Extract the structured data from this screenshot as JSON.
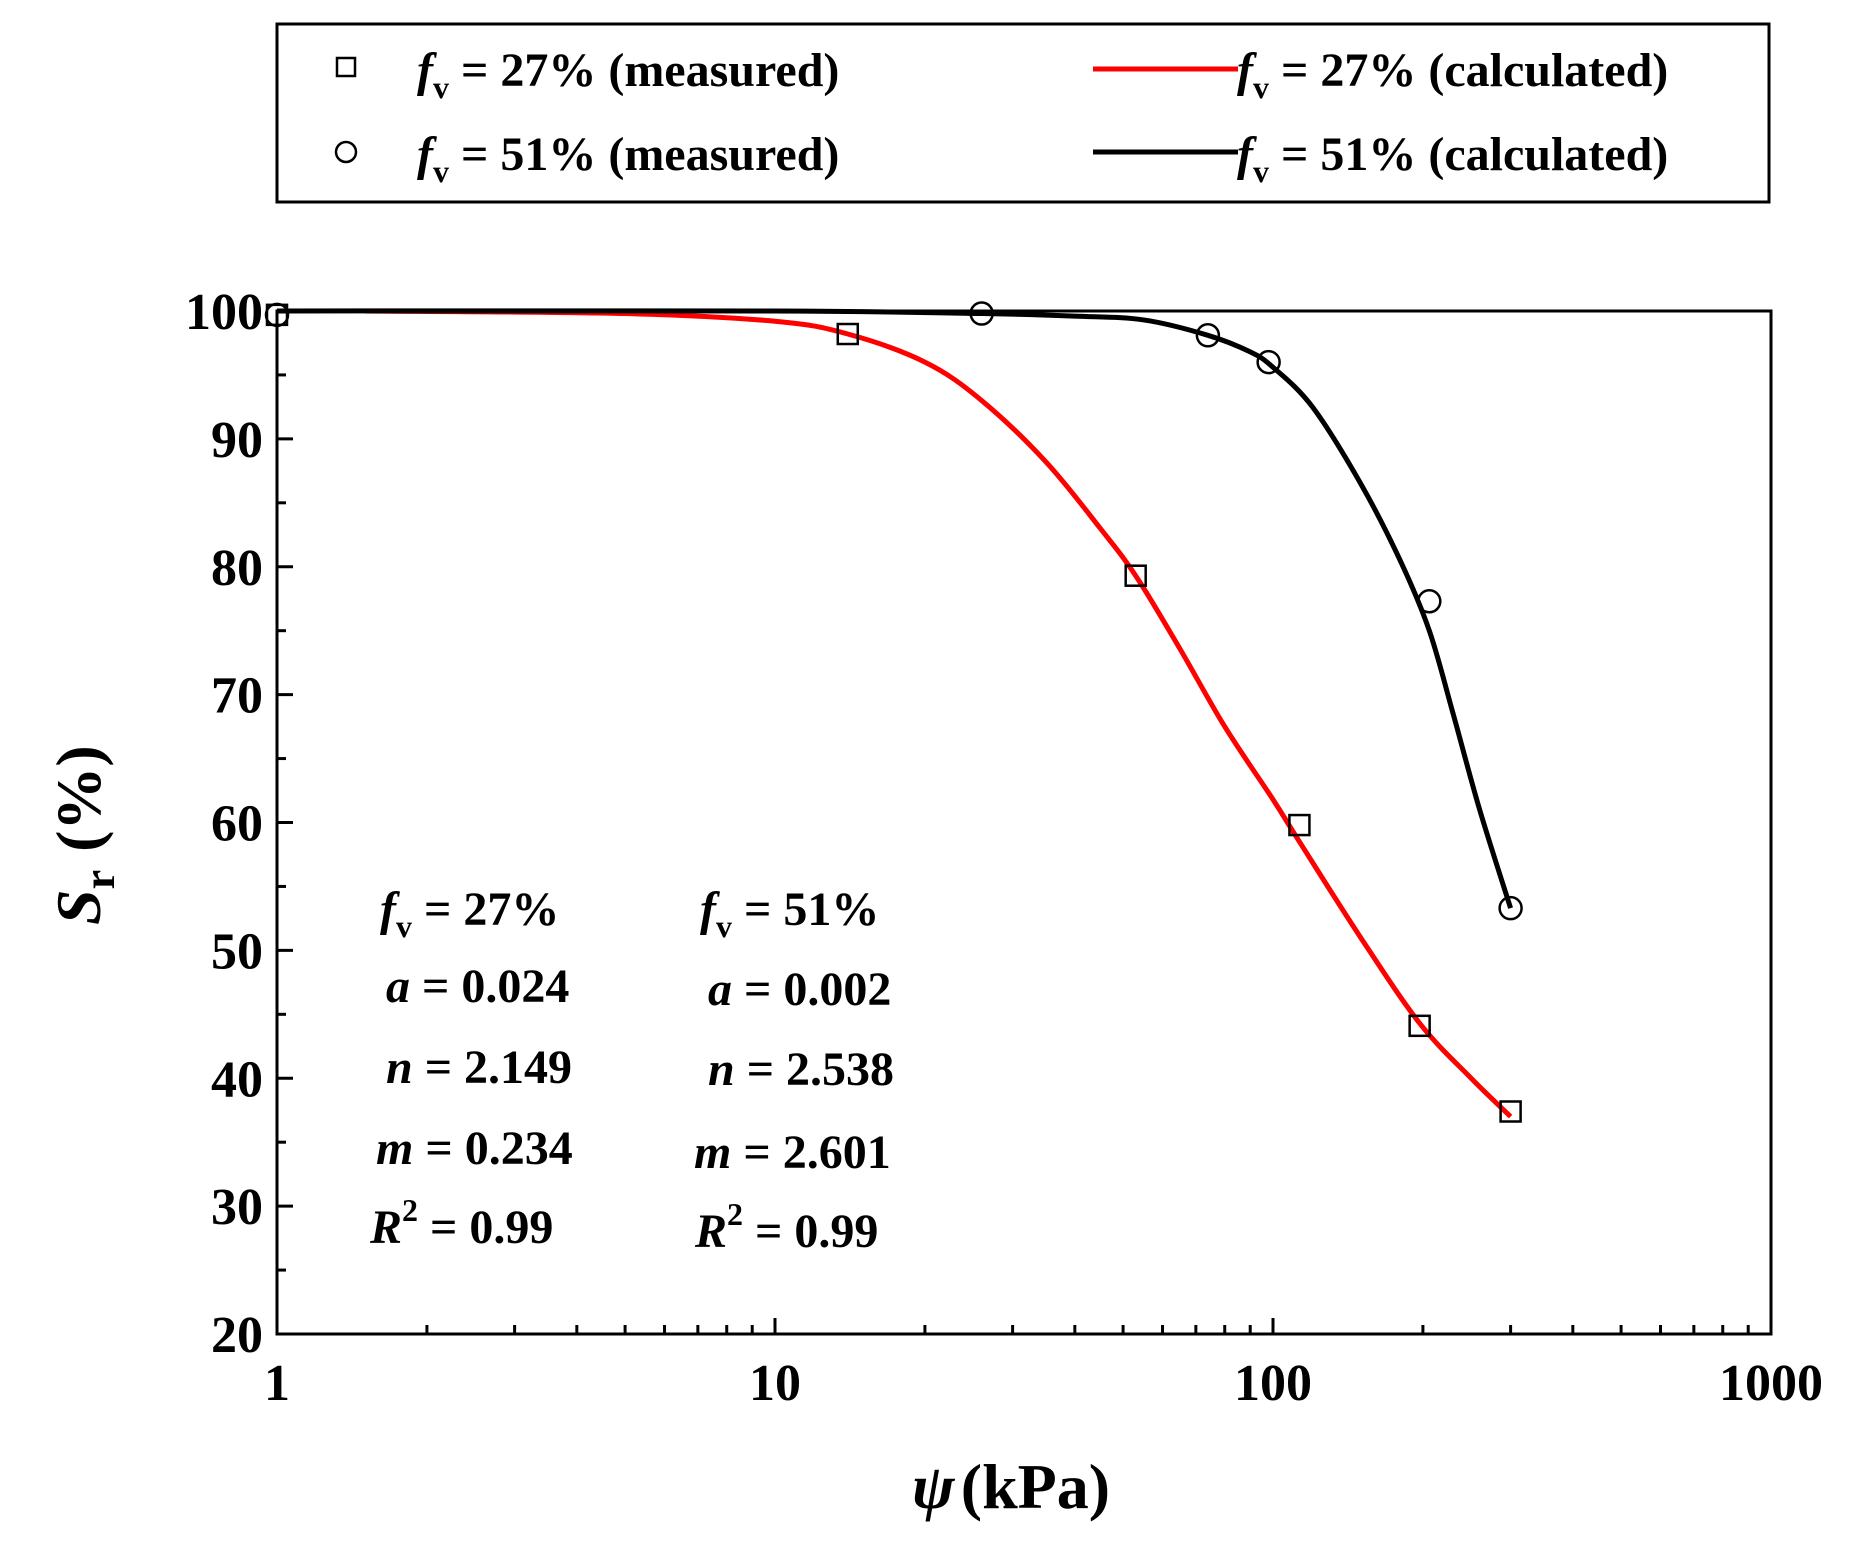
{
  "chart_data": {
    "type": "scatter",
    "xscale": "log",
    "xlim": [
      1,
      1000
    ],
    "ylim": [
      20,
      100
    ],
    "xticks": [
      "1",
      "10",
      "100",
      "1000"
    ],
    "yticks": [
      "20",
      "30",
      "40",
      "50",
      "60",
      "70",
      "80",
      "90",
      "100"
    ],
    "ylabel": {
      "main": "S",
      "sub": "r",
      "unit": "(%)"
    },
    "xlabel": {
      "main": "ψ",
      "unit": "(kPa)"
    },
    "series": [
      {
        "name": "fv27_measured",
        "kind": "markers",
        "marker": "square",
        "color": "#000000",
        "x": [
          1,
          14,
          53,
          113,
          197,
          300
        ],
        "y": [
          99.7,
          98.2,
          79.3,
          59.8,
          44.1,
          37.4
        ]
      },
      {
        "name": "fv51_measured",
        "kind": "markers",
        "marker": "circle",
        "color": "#000000",
        "x": [
          1,
          26,
          74,
          98,
          206,
          300
        ],
        "y": [
          99.7,
          99.8,
          98.1,
          96.0,
          77.3,
          53.3
        ]
      },
      {
        "name": "fv27_calculated",
        "kind": "line",
        "color": "#ff0000",
        "x": [
          1.5,
          5,
          10,
          14,
          20,
          26,
          35,
          45,
          53,
          65,
          80,
          100,
          113,
          150,
          197,
          250,
          300
        ],
        "y": [
          100,
          99.8,
          99.2,
          98.2,
          96.0,
          93.0,
          88.2,
          83.0,
          79.3,
          73.6,
          67.5,
          61.8,
          58.5,
          51.0,
          44.3,
          40.0,
          37.0
        ]
      },
      {
        "name": "fv51_calculated",
        "kind": "line",
        "color": "#000000",
        "x": [
          1,
          10,
          26,
          40,
          55,
          74,
          90,
          100,
          120,
          150,
          180,
          206,
          230,
          260,
          300
        ],
        "y": [
          100,
          100,
          99.8,
          99.6,
          99.3,
          98.1,
          96.8,
          95.6,
          92.5,
          86.5,
          80.5,
          75.0,
          68.5,
          61.0,
          53.3
        ]
      }
    ],
    "legend": {
      "placement": "top",
      "entries": [
        {
          "series": "fv27_measured",
          "symbol": "f",
          "sub": "v",
          "text": " = 27% (measured)"
        },
        {
          "series": "fv27_calculated",
          "symbol": "f",
          "sub": "v",
          "text": " = 27% (calculated)"
        },
        {
          "series": "fv51_measured",
          "symbol": "f",
          "sub": "v",
          "text": " = 51% (measured)"
        },
        {
          "series": "fv51_calculated",
          "symbol": "f",
          "sub": "v",
          "text": " = 51% (calculated)"
        }
      ]
    },
    "annotations": {
      "fv27": {
        "header_sym": "f",
        "header_sub": "v",
        "header_val": " = 27%",
        "a": " = 0.024",
        "n": " = 2.149",
        "m": " = 0.234",
        "r2_sup": "2",
        "r2": " = 0.99"
      },
      "fv51": {
        "header_sym": "f",
        "header_sub": "v",
        "header_val": " = 51%",
        "a": " = 0.002",
        "n": " = 2.538",
        "m": " = 2.601",
        "r2_sup": "2",
        "r2": " = 0.99"
      },
      "param_labels": {
        "a": "a",
        "n": "n",
        "m": "m",
        "r": "R"
      }
    }
  }
}
